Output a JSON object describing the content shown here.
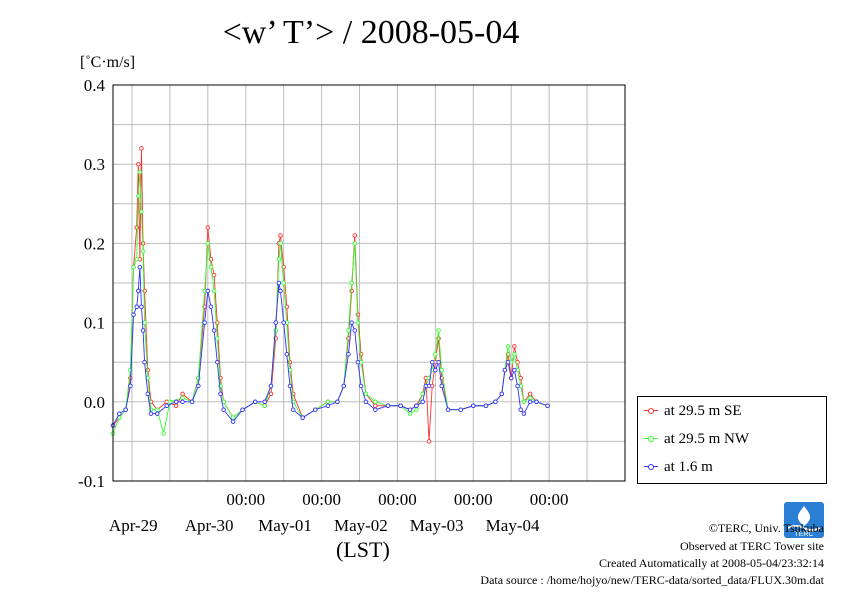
{
  "chart_data": {
    "type": "line",
    "title": "<w’ T’> / 2008-05-04",
    "ylabel": "[˚C·m/s]",
    "xlabel": "(LST)",
    "ylim": [
      -0.1,
      0.4
    ],
    "yticks": [
      "-0.1",
      "0.0",
      "0.1",
      "0.2",
      "0.3",
      "0.4"
    ],
    "xlim": [
      "2008-04-28T06:00",
      "2008-05-05T00:00"
    ],
    "x_time_ticks": [
      "00:00",
      "00:00",
      "00:00",
      "00:00",
      "00:00"
    ],
    "x_date_labels": [
      "Apr-29",
      "Apr-30",
      "May-01",
      "May-02",
      "May-03",
      "May-04"
    ],
    "grid": true,
    "legend_position": "right",
    "series": [
      {
        "name": "at 29.5 m SE",
        "color": "#ff3030",
        "points": [
          [
            "2008-04-28T06:00",
            -0.03
          ],
          [
            "2008-04-28T08:00",
            -0.02
          ],
          [
            "2008-04-28T10:00",
            -0.01
          ],
          [
            "2008-04-28T11:30",
            0.03
          ],
          [
            "2008-04-28T12:30",
            0.17
          ],
          [
            "2008-04-28T13:30",
            0.22
          ],
          [
            "2008-04-28T14:00",
            0.3
          ],
          [
            "2008-04-28T14:30",
            0.18
          ],
          [
            "2008-04-28T15:00",
            0.32
          ],
          [
            "2008-04-28T15:30",
            0.2
          ],
          [
            "2008-04-28T16:00",
            0.14
          ],
          [
            "2008-04-28T17:00",
            0.04
          ],
          [
            "2008-04-28T18:00",
            0.0
          ],
          [
            "2008-04-28T20:00",
            -0.01
          ],
          [
            "2008-04-28T23:00",
            0.0
          ],
          [
            "2008-04-29T02:00",
            -0.005
          ],
          [
            "2008-04-29T04:00",
            0.01
          ],
          [
            "2008-04-29T07:00",
            0.0
          ],
          [
            "2008-04-29T09:00",
            0.03
          ],
          [
            "2008-04-29T11:00",
            0.12
          ],
          [
            "2008-04-29T12:00",
            0.22
          ],
          [
            "2008-04-29T13:00",
            0.18
          ],
          [
            "2008-04-29T14:00",
            0.16
          ],
          [
            "2008-04-29T15:00",
            0.1
          ],
          [
            "2008-04-29T16:00",
            0.03
          ],
          [
            "2008-04-29T17:00",
            0.0
          ],
          [
            "2008-04-29T20:00",
            -0.02
          ],
          [
            "2008-04-29T23:00",
            -0.01
          ],
          [
            "2008-04-30T03:00",
            0.0
          ],
          [
            "2008-04-30T06:00",
            -0.005
          ],
          [
            "2008-04-30T08:00",
            0.01
          ],
          [
            "2008-04-30T09:30",
            0.08
          ],
          [
            "2008-04-30T10:30",
            0.2
          ],
          [
            "2008-04-30T11:00",
            0.21
          ],
          [
            "2008-04-30T12:00",
            0.17
          ],
          [
            "2008-04-30T13:00",
            0.12
          ],
          [
            "2008-04-30T14:00",
            0.05
          ],
          [
            "2008-04-30T15:00",
            0.01
          ],
          [
            "2008-04-30T18:00",
            -0.02
          ],
          [
            "2008-04-30T22:00",
            -0.01
          ],
          [
            "2008-05-01T02:00",
            0.0
          ],
          [
            "2008-05-01T05:00",
            0.0
          ],
          [
            "2008-05-01T07:00",
            0.02
          ],
          [
            "2008-05-01T08:30",
            0.08
          ],
          [
            "2008-05-01T09:30",
            0.14
          ],
          [
            "2008-05-01T10:30",
            0.21
          ],
          [
            "2008-05-01T11:30",
            0.11
          ],
          [
            "2008-05-01T12:30",
            0.06
          ],
          [
            "2008-05-01T14:00",
            0.01
          ],
          [
            "2008-05-01T17:00",
            -0.005
          ],
          [
            "2008-05-01T21:00",
            -0.005
          ],
          [
            "2008-05-02T01:00",
            -0.005
          ],
          [
            "2008-05-02T04:00",
            -0.01
          ],
          [
            "2008-05-02T06:00",
            -0.005
          ],
          [
            "2008-05-02T08:00",
            0.01
          ],
          [
            "2008-05-02T09:00",
            0.03
          ],
          [
            "2008-05-02T10:00",
            -0.05
          ],
          [
            "2008-05-02T11:00",
            0.02
          ],
          [
            "2008-05-02T12:00",
            0.05
          ],
          [
            "2008-05-02T13:00",
            0.08
          ],
          [
            "2008-05-02T14:00",
            0.03
          ],
          [
            "2008-05-02T16:00",
            -0.01
          ],
          [
            "2008-05-02T20:00",
            -0.01
          ],
          [
            "2008-05-03T00:00",
            -0.005
          ],
          [
            "2008-05-03T04:00",
            -0.005
          ],
          [
            "2008-05-03T07:00",
            0.0
          ],
          [
            "2008-05-03T09:00",
            0.01
          ],
          [
            "2008-05-03T10:00",
            0.04
          ],
          [
            "2008-05-03T11:00",
            0.06
          ],
          [
            "2008-05-03T12:00",
            0.03
          ],
          [
            "2008-05-03T13:00",
            0.07
          ],
          [
            "2008-05-03T14:00",
            0.05
          ],
          [
            "2008-05-03T15:00",
            0.03
          ],
          [
            "2008-05-03T16:00",
            0.0
          ],
          [
            "2008-05-03T18:00",
            0.01
          ],
          [
            "2008-05-03T20:00",
            0.0
          ],
          [
            "2008-05-03T23:30",
            -0.005
          ]
        ]
      },
      {
        "name": "at 29.5 m NW",
        "color": "#30ff30",
        "points": [
          [
            "2008-04-28T06:00",
            -0.04
          ],
          [
            "2008-04-28T08:00",
            -0.02
          ],
          [
            "2008-04-28T10:00",
            -0.01
          ],
          [
            "2008-04-28T11:30",
            0.04
          ],
          [
            "2008-04-28T12:30",
            0.17
          ],
          [
            "2008-04-28T13:30",
            0.18
          ],
          [
            "2008-04-28T14:00",
            0.26
          ],
          [
            "2008-04-28T14:30",
            0.29
          ],
          [
            "2008-04-28T15:00",
            0.24
          ],
          [
            "2008-04-28T15:30",
            0.19
          ],
          [
            "2008-04-28T16:00",
            0.1
          ],
          [
            "2008-04-28T17:00",
            0.03
          ],
          [
            "2008-04-28T18:00",
            -0.01
          ],
          [
            "2008-04-28T20:00",
            -0.01
          ],
          [
            "2008-04-28T22:00",
            -0.04
          ],
          [
            "2008-04-29T00:00",
            0.0
          ],
          [
            "2008-04-29T04:00",
            0.005
          ],
          [
            "2008-04-29T07:00",
            0.0
          ],
          [
            "2008-04-29T09:00",
            0.03
          ],
          [
            "2008-04-29T11:00",
            0.14
          ],
          [
            "2008-04-29T12:00",
            0.2
          ],
          [
            "2008-04-29T13:00",
            0.17
          ],
          [
            "2008-04-29T14:00",
            0.14
          ],
          [
            "2008-04-29T15:00",
            0.08
          ],
          [
            "2008-04-29T16:00",
            0.02
          ],
          [
            "2008-04-29T17:00",
            0.0
          ],
          [
            "2008-04-29T20:00",
            -0.02
          ],
          [
            "2008-04-29T23:00",
            -0.01
          ],
          [
            "2008-04-30T03:00",
            0.0
          ],
          [
            "2008-04-30T06:00",
            -0.005
          ],
          [
            "2008-04-30T08:00",
            0.02
          ],
          [
            "2008-04-30T09:30",
            0.09
          ],
          [
            "2008-04-30T10:30",
            0.18
          ],
          [
            "2008-04-30T11:00",
            0.2
          ],
          [
            "2008-04-30T12:00",
            0.15
          ],
          [
            "2008-04-30T13:00",
            0.1
          ],
          [
            "2008-04-30T14:00",
            0.04
          ],
          [
            "2008-04-30T15:00",
            0.0
          ],
          [
            "2008-04-30T18:00",
            -0.02
          ],
          [
            "2008-04-30T22:00",
            -0.01
          ],
          [
            "2008-05-01T02:00",
            0.0
          ],
          [
            "2008-05-01T05:00",
            0.0
          ],
          [
            "2008-05-01T07:00",
            0.02
          ],
          [
            "2008-05-01T08:30",
            0.09
          ],
          [
            "2008-05-01T09:30",
            0.15
          ],
          [
            "2008-05-01T10:30",
            0.2
          ],
          [
            "2008-05-01T11:30",
            0.1
          ],
          [
            "2008-05-01T12:30",
            0.05
          ],
          [
            "2008-05-01T14:00",
            0.01
          ],
          [
            "2008-05-01T17:00",
            0.0
          ],
          [
            "2008-05-01T21:00",
            -0.005
          ],
          [
            "2008-05-02T01:00",
            -0.005
          ],
          [
            "2008-05-02T04:00",
            -0.015
          ],
          [
            "2008-05-02T06:00",
            -0.01
          ],
          [
            "2008-05-02T08:00",
            0.01
          ],
          [
            "2008-05-02T09:00",
            0.02
          ],
          [
            "2008-05-02T10:00",
            0.03
          ],
          [
            "2008-05-02T11:00",
            0.04
          ],
          [
            "2008-05-02T12:00",
            0.06
          ],
          [
            "2008-05-02T13:00",
            0.09
          ],
          [
            "2008-05-02T14:00",
            0.04
          ],
          [
            "2008-05-02T16:00",
            -0.01
          ],
          [
            "2008-05-02T20:00",
            -0.01
          ],
          [
            "2008-05-03T00:00",
            -0.005
          ],
          [
            "2008-05-03T04:00",
            -0.005
          ],
          [
            "2008-05-03T07:00",
            0.0
          ],
          [
            "2008-05-03T09:00",
            0.01
          ],
          [
            "2008-05-03T10:00",
            0.04
          ],
          [
            "2008-05-03T11:00",
            0.07
          ],
          [
            "2008-05-03T12:00",
            0.05
          ],
          [
            "2008-05-03T13:00",
            0.06
          ],
          [
            "2008-05-03T14:00",
            0.04
          ],
          [
            "2008-05-03T15:00",
            0.02
          ],
          [
            "2008-05-03T16:00",
            0.0
          ],
          [
            "2008-05-03T18:00",
            0.005
          ],
          [
            "2008-05-03T20:00",
            0.0
          ],
          [
            "2008-05-03T23:30",
            -0.005
          ]
        ]
      },
      {
        "name": "at 1.6 m",
        "color": "#3030ff",
        "points": [
          [
            "2008-04-28T06:00",
            -0.03
          ],
          [
            "2008-04-28T08:00",
            -0.015
          ],
          [
            "2008-04-28T10:00",
            -0.01
          ],
          [
            "2008-04-28T11:30",
            0.02
          ],
          [
            "2008-04-28T12:30",
            0.11
          ],
          [
            "2008-04-28T13:30",
            0.12
          ],
          [
            "2008-04-28T14:00",
            0.14
          ],
          [
            "2008-04-28T14:30",
            0.17
          ],
          [
            "2008-04-28T15:00",
            0.12
          ],
          [
            "2008-04-28T15:30",
            0.09
          ],
          [
            "2008-04-28T16:00",
            0.05
          ],
          [
            "2008-04-28T17:00",
            0.01
          ],
          [
            "2008-04-28T18:00",
            -0.015
          ],
          [
            "2008-04-28T20:00",
            -0.015
          ],
          [
            "2008-04-28T23:00",
            -0.005
          ],
          [
            "2008-04-29T02:00",
            0.0
          ],
          [
            "2008-04-29T04:00",
            0.0
          ],
          [
            "2008-04-29T07:00",
            0.0
          ],
          [
            "2008-04-29T09:00",
            0.02
          ],
          [
            "2008-04-29T11:00",
            0.1
          ],
          [
            "2008-04-29T12:00",
            0.14
          ],
          [
            "2008-04-29T13:00",
            0.12
          ],
          [
            "2008-04-29T14:00",
            0.09
          ],
          [
            "2008-04-29T15:00",
            0.05
          ],
          [
            "2008-04-29T16:00",
            0.01
          ],
          [
            "2008-04-29T17:00",
            -0.01
          ],
          [
            "2008-04-29T20:00",
            -0.025
          ],
          [
            "2008-04-29T23:00",
            -0.01
          ],
          [
            "2008-04-30T03:00",
            0.0
          ],
          [
            "2008-04-30T06:00",
            0.0
          ],
          [
            "2008-04-30T08:00",
            0.02
          ],
          [
            "2008-04-30T09:30",
            0.1
          ],
          [
            "2008-04-30T10:30",
            0.15
          ],
          [
            "2008-04-30T11:00",
            0.14
          ],
          [
            "2008-04-30T12:00",
            0.1
          ],
          [
            "2008-04-30T13:00",
            0.06
          ],
          [
            "2008-04-30T14:00",
            0.02
          ],
          [
            "2008-04-30T15:00",
            -0.01
          ],
          [
            "2008-04-30T18:00",
            -0.02
          ],
          [
            "2008-04-30T22:00",
            -0.01
          ],
          [
            "2008-05-01T02:00",
            -0.005
          ],
          [
            "2008-05-01T05:00",
            0.0
          ],
          [
            "2008-05-01T07:00",
            0.02
          ],
          [
            "2008-05-01T08:30",
            0.06
          ],
          [
            "2008-05-01T09:30",
            0.1
          ],
          [
            "2008-05-01T10:30",
            0.09
          ],
          [
            "2008-05-01T11:30",
            0.05
          ],
          [
            "2008-05-01T12:30",
            0.02
          ],
          [
            "2008-05-01T14:00",
            0.0
          ],
          [
            "2008-05-01T17:00",
            -0.01
          ],
          [
            "2008-05-01T21:00",
            -0.005
          ],
          [
            "2008-05-02T01:00",
            -0.005
          ],
          [
            "2008-05-02T04:00",
            -0.01
          ],
          [
            "2008-05-02T06:00",
            -0.005
          ],
          [
            "2008-05-02T08:00",
            0.0
          ],
          [
            "2008-05-02T09:00",
            0.02
          ],
          [
            "2008-05-02T10:00",
            0.02
          ],
          [
            "2008-05-02T11:00",
            0.05
          ],
          [
            "2008-05-02T12:00",
            0.04
          ],
          [
            "2008-05-02T13:00",
            0.05
          ],
          [
            "2008-05-02T14:00",
            0.02
          ],
          [
            "2008-05-02T16:00",
            -0.01
          ],
          [
            "2008-05-02T20:00",
            -0.01
          ],
          [
            "2008-05-03T00:00",
            -0.005
          ],
          [
            "2008-05-03T04:00",
            -0.005
          ],
          [
            "2008-05-03T07:00",
            0.0
          ],
          [
            "2008-05-03T09:00",
            0.01
          ],
          [
            "2008-05-03T10:00",
            0.04
          ],
          [
            "2008-05-03T11:00",
            0.05
          ],
          [
            "2008-05-03T12:00",
            0.03
          ],
          [
            "2008-05-03T13:00",
            0.04
          ],
          [
            "2008-05-03T14:00",
            0.02
          ],
          [
            "2008-05-03T15:00",
            -0.01
          ],
          [
            "2008-05-03T16:00",
            -0.015
          ],
          [
            "2008-05-03T18:00",
            0.0
          ],
          [
            "2008-05-03T20:00",
            0.0
          ],
          [
            "2008-05-03T23:30",
            -0.005
          ]
        ]
      }
    ]
  },
  "footer": {
    "copyright": "©TERC, Univ. Tsukuba",
    "observed": "Observed at TERC Tower site",
    "created": "Created Automatically at 2008-05-04/23:32:14",
    "source": "Data source : /home/hojyo/new/TERC-data/sorted_data/FLUX.30m.dat"
  }
}
